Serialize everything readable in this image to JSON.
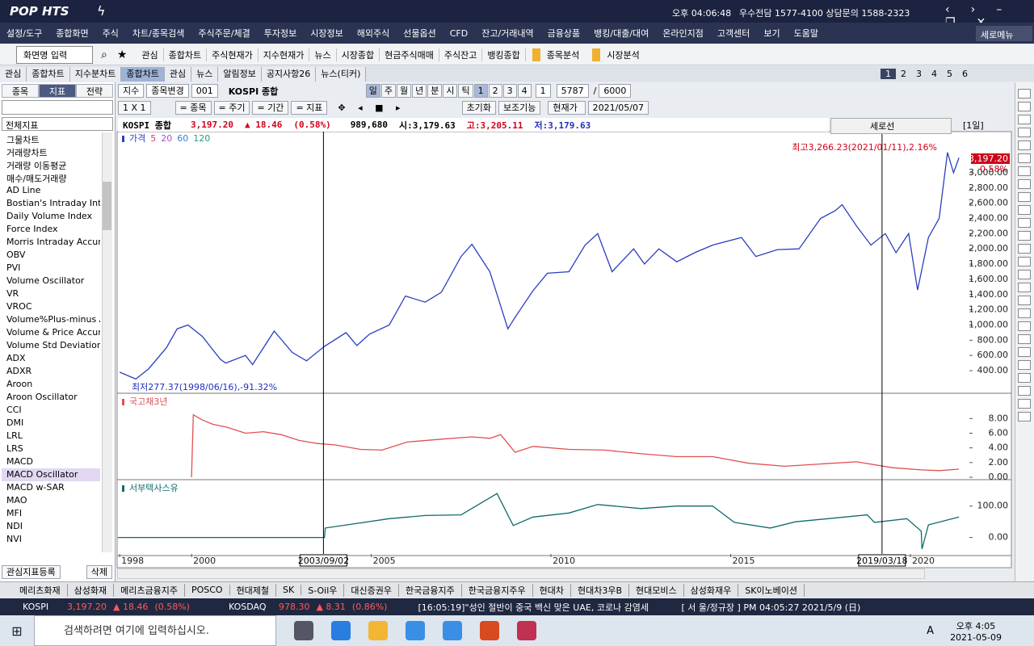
{
  "titlebar": {
    "logo": "POP HTS",
    "clock": "오후 04:06:48",
    "contact": "우수전담 1577-4100 상담문의 1588-2323"
  },
  "menu": [
    "설정/도구",
    "종합화면",
    "주식",
    "차트/종목검색",
    "주식주문/체결",
    "투자정보",
    "시장정보",
    "해외주식",
    "선물옵션",
    "CFD",
    "잔고/거래내역",
    "금융상품",
    "뱅킹/대출/대여",
    "온라인지점",
    "고객센터",
    "보기",
    "도움말"
  ],
  "vertical_menu": "세로메뉴",
  "toolbar": {
    "screen_input": "화면명 입력",
    "items": [
      "관심",
      "종합차트",
      "주식현재가",
      "지수현재가",
      "뉴스",
      "시장종합",
      "현금주식매매",
      "주식잔고",
      "뱅킹종합"
    ],
    "folders": [
      "종목분석",
      "시장분석"
    ]
  },
  "tabs": {
    "items": [
      "관심",
      "종합차트",
      "지수분차트",
      "종합차트",
      "관심",
      "뉴스",
      "알림정보",
      "공지사항26",
      "뉴스(티커)"
    ],
    "active": 3,
    "pages": [
      "1",
      "2",
      "3",
      "4",
      "5",
      "6"
    ]
  },
  "sidebar": {
    "tabs": [
      "종목",
      "지표",
      "전략"
    ],
    "active_tab": 1,
    "category": "전체지표",
    "items": [
      "그물차트",
      "거래량차트",
      "거래량 이동평균",
      "매수/매도거래량",
      "AD Line",
      "Bostian's Intraday Intens",
      "Daily Volume Index",
      "Force Index",
      "Morris Intraday Accumu",
      "OBV",
      "PVI",
      "Volume Oscillator",
      "VR",
      "VROC",
      "Volume%Plus-minus Av",
      "Volume & Price Accumu",
      "Volume Std Deviations",
      "ADX",
      "ADXR",
      "Aroon",
      "Aroon Oscillator",
      "CCI",
      "DMI",
      "LRL",
      "LRS",
      "MACD",
      "MACD Oscillator",
      "MACD w-SAR",
      "MAO",
      "MFI",
      "NDI",
      "NVI"
    ],
    "selected": 26,
    "buttons": [
      "관심지표등록",
      "삭제"
    ]
  },
  "chart_toolbar": {
    "row1": {
      "kind": "지수",
      "change": "종목변경",
      "code": "001",
      "name": "KOSPI 종합",
      "periods": [
        "일",
        "주",
        "월",
        "년",
        "분",
        "시",
        "틱"
      ],
      "active_period": 0,
      "multipliers": [
        "1",
        "2",
        "3",
        "4"
      ],
      "unit": "1",
      "count": "5787",
      "sep": "/",
      "total": "6000"
    },
    "row2": {
      "layout": "1 X 1",
      "options": [
        "= 종목",
        "= 주기",
        "= 기간",
        "= 지표"
      ],
      "reset": "초기화",
      "aux": "보조기능",
      "price": "현재가",
      "date": "2021/05/07"
    }
  },
  "info": {
    "name": "KOSPI 종합",
    "price": "3,197.20",
    "change": "▲ 18.46",
    "pct": "(0.58%)",
    "volume": "989,680",
    "open": "시:3,179.63",
    "high": "고:3,205.11",
    "low": "저:3,179.63",
    "crossline": "세로선",
    "period": "[1일]"
  },
  "x_axis": {
    "xlim": [
      1997.93,
      2021.64
    ],
    "xticks": [
      1998,
      2000,
      2005,
      2010,
      2015,
      2020
    ],
    "markers": [
      {
        "value": 2003.67,
        "label": "2003/09/02"
      },
      {
        "value": 2019.21,
        "label": "2019/03/18"
      }
    ]
  },
  "chart_data": [
    {
      "type": "line",
      "title": "가격",
      "ma_labels": [
        "5",
        "20",
        "60",
        "120"
      ],
      "ma_colors": [
        "#e0307a",
        "#b050d0",
        "#3a7fd0",
        "#20a080"
      ],
      "ylim": [
        135,
        3519
      ],
      "yticks": [
        {
          "value": 400,
          "label": "400.00"
        },
        {
          "value": 600,
          "label": "600.00"
        },
        {
          "value": 800,
          "label": "800.00"
        },
        {
          "value": 1000,
          "label": "1,000.00"
        },
        {
          "value": 1200,
          "label": "1,200.00"
        },
        {
          "value": 1400,
          "label": "1,400.00"
        },
        {
          "value": 1600,
          "label": "1,600.00"
        },
        {
          "value": 1800,
          "label": "1,800.00"
        },
        {
          "value": 2000,
          "label": "2,000.00"
        },
        {
          "value": 2200,
          "label": "2,200.00"
        },
        {
          "value": 2400,
          "label": "2,400.00"
        },
        {
          "value": 2600,
          "label": "2,600.00"
        },
        {
          "value": 2800,
          "label": "2,800.00"
        },
        {
          "value": 3000,
          "label": "3,000.00"
        }
      ],
      "annotations": {
        "high": "최고3,266.23(2021/01/11),2.16%",
        "low": "최저277.37(1998/06/16),-91.32%",
        "last_price": "3,197.20",
        "last_pct": "0.58%"
      },
      "series": [
        {
          "name": "가격",
          "color": "#2b3fc0",
          "x": [
            1998.0,
            1998.45,
            1998.8,
            1999.3,
            1999.6,
            1999.9,
            2000.3,
            2000.8,
            2000.95,
            2001.5,
            2001.7,
            2002.3,
            2002.8,
            2003.2,
            2003.7,
            2004.3,
            2004.6,
            2004.95,
            2005.5,
            2005.95,
            2006.5,
            2006.95,
            2007.5,
            2007.8,
            2008.3,
            2008.8,
            2009.0,
            2009.5,
            2009.9,
            2010.5,
            2010.95,
            2011.3,
            2011.7,
            2012.3,
            2012.6,
            2013.0,
            2013.5,
            2014.0,
            2014.5,
            2015.3,
            2015.7,
            2016.3,
            2016.9,
            2017.5,
            2017.9,
            2018.1,
            2018.5,
            2018.9,
            2019.3,
            2019.6,
            2019.95,
            2020.2,
            2020.5,
            2020.8,
            2021.0,
            2021.03,
            2021.2,
            2021.35
          ],
          "values": [
            380,
            290,
            420,
            700,
            950,
            1000,
            850,
            550,
            500,
            600,
            480,
            920,
            640,
            530,
            720,
            900,
            730,
            880,
            1000,
            1380,
            1300,
            1430,
            1900,
            2060,
            1700,
            950,
            1100,
            1450,
            1680,
            1700,
            2050,
            2200,
            1700,
            2000,
            1800,
            2000,
            1830,
            1950,
            2050,
            2150,
            1900,
            1990,
            2000,
            2400,
            2500,
            2580,
            2300,
            2050,
            2200,
            1950,
            2200,
            1460,
            2150,
            2400,
            3150,
            3266,
            3000,
            3197
          ]
        }
      ]
    },
    {
      "type": "line",
      "title": "국고채3년",
      "ylim": [
        0,
        11
      ],
      "yticks": [
        {
          "value": 0,
          "label": "0.00"
        },
        {
          "value": 2,
          "label": "2.00"
        },
        {
          "value": 4,
          "label": "4.00"
        },
        {
          "value": 6,
          "label": "6.00"
        },
        {
          "value": 8,
          "label": "8.00"
        }
      ],
      "series": [
        {
          "name": "국고채3년",
          "color": "#e05050",
          "x": [
            2000.0,
            2000.05,
            2000.3,
            2000.6,
            2001.0,
            2001.5,
            2002.0,
            2002.5,
            2003.0,
            2003.5,
            2004.0,
            2004.7,
            2005.3,
            2006.0,
            2007.0,
            2007.8,
            2008.3,
            2008.6,
            2009.0,
            2009.5,
            2010.5,
            2011.5,
            2012.5,
            2013.5,
            2014.5,
            2015.5,
            2016.5,
            2017.5,
            2018.5,
            2019.5,
            2020.3,
            2020.8,
            2021.35
          ],
          "values": [
            0,
            8.5,
            7.8,
            7.2,
            6.8,
            6.0,
            6.2,
            5.8,
            5.0,
            4.6,
            4.4,
            3.8,
            3.7,
            4.8,
            5.2,
            5.5,
            5.3,
            5.8,
            3.4,
            4.2,
            3.8,
            3.7,
            3.2,
            2.8,
            2.8,
            1.9,
            1.5,
            1.8,
            2.1,
            1.3,
            1.0,
            0.9,
            1.1
          ]
        }
      ]
    },
    {
      "type": "line",
      "title": "서부텍사스유",
      "ylim": [
        -50,
        174
      ],
      "yticks": [
        {
          "value": 0,
          "label": "0.00"
        },
        {
          "value": 100,
          "label": "100.00"
        }
      ],
      "series": [
        {
          "name": "서부텍사스유",
          "color": "#106a6a",
          "x": [
            1997.95,
            2003.7,
            2003.72,
            2004.5,
            2005.5,
            2006.5,
            2007.5,
            2008.5,
            2008.95,
            2009.5,
            2010.5,
            2011.3,
            2012.5,
            2013.5,
            2014.5,
            2015.1,
            2016.1,
            2016.8,
            2018.8,
            2019.0,
            2019.9,
            2020.3,
            2020.32,
            2020.5,
            2021.35
          ],
          "values": [
            0,
            0,
            30,
            43,
            60,
            70,
            72,
            140,
            38,
            65,
            78,
            105,
            92,
            100,
            100,
            48,
            30,
            50,
            72,
            48,
            60,
            20,
            -37,
            40,
            65
          ]
        }
      ]
    }
  ],
  "stock_tabs": [
    "메리츠화재",
    "삼성화재",
    "메리츠금융지주",
    "POSCO",
    "현대제철",
    "SK",
    "S-Oil우",
    "대신증권우",
    "한국금융지주",
    "한국금융지주우",
    "현대차",
    "현대차3우B",
    "현대모비스",
    "삼성화재우",
    "SK이노베이션"
  ],
  "ticker": {
    "kospi": {
      "name": "KOSPI",
      "price": "3,197.20",
      "change": "▲ 18.46",
      "pct": "(0.58%)"
    },
    "kosdaq": {
      "name": "KOSDAQ",
      "price": "978.30",
      "change": "▲ 8.31",
      "pct": "(0.86%)"
    },
    "news": "[16:05:19]\"성인 절반이 중국 백신 맞은 UAE, 코로나 감염세",
    "session": "[ 서 울/정규장 ] PM 04:05:27 2021/5/9 (日)"
  },
  "taskbar": {
    "search": "검색하려면 여기에 입력하십시오.",
    "ime": "A",
    "time": "오후 4:05",
    "date": "2021-05-09"
  }
}
